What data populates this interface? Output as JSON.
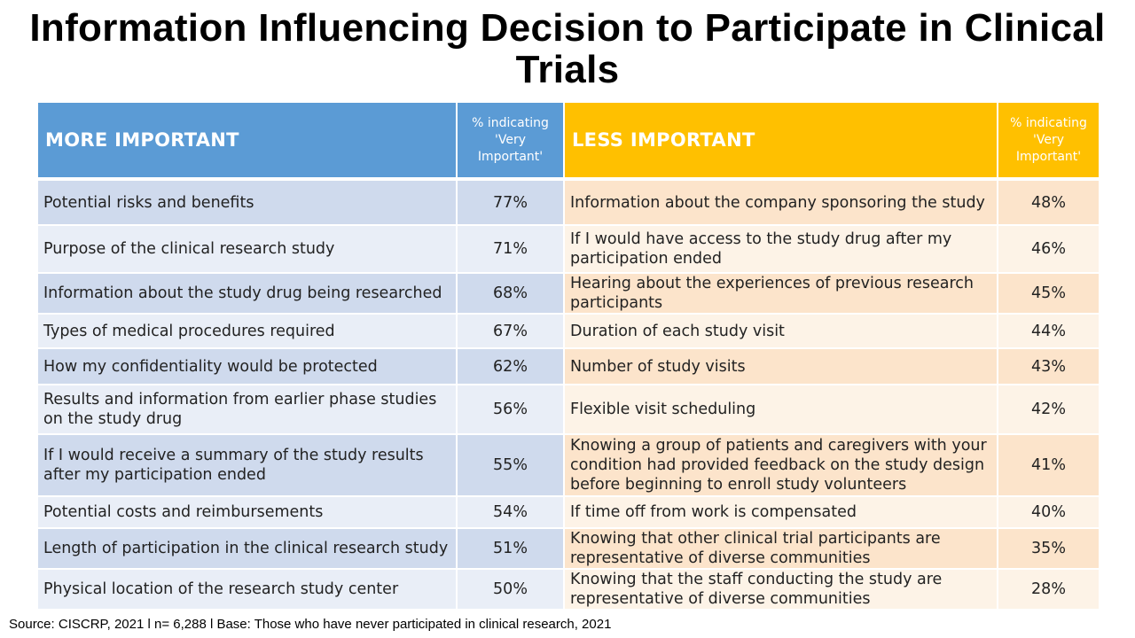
{
  "title": "Information Influencing Decision to Participate in Clinical Trials",
  "header": {
    "more_label": "MORE IMPORTANT",
    "more_pct_label": "% indicating 'Very Important'",
    "less_label": "LESS IMPORTANT",
    "less_pct_label": "% indicating 'Very Important'"
  },
  "colors": {
    "more_header": "#5b9bd5",
    "less_header": "#ffc000",
    "more_row_dark": "#cfdaed",
    "more_row_light": "#e9eef7",
    "less_row_dark": "#fce4cb",
    "less_row_light": "#fdf3e7"
  },
  "rows": [
    {
      "more": "Potential risks and benefits",
      "more_pct": "77%",
      "less": "Information about the company sponsoring the study",
      "less_pct": "48%"
    },
    {
      "more": "Purpose of the clinical research study",
      "more_pct": "71%",
      "less": "If I would have access to the study drug after my participation ended",
      "less_pct": "46%"
    },
    {
      "more": "Information about the study drug being researched",
      "more_pct": "68%",
      "less": "Hearing about the experiences of previous research participants",
      "less_pct": "45%"
    },
    {
      "more": "Types of medical procedures required",
      "more_pct": "67%",
      "less": "Duration of each study visit",
      "less_pct": "44%"
    },
    {
      "more": "How my confidentiality would be protected",
      "more_pct": "62%",
      "less": "Number of study visits",
      "less_pct": "43%"
    },
    {
      "more": "Results and information from earlier phase studies on the study drug",
      "more_pct": "56%",
      "less": "Flexible visit scheduling",
      "less_pct": "42%"
    },
    {
      "more": "If I would receive a summary of the study results after my participation ended",
      "more_pct": "55%",
      "less": "Knowing a group of patients and caregivers with your condition had provided feedback on the study design before beginning to enroll study volunteers",
      "less_pct": "41%"
    },
    {
      "more": "Potential costs and reimbursements",
      "more_pct": "54%",
      "less": "If time off from work is compensated",
      "less_pct": "40%"
    },
    {
      "more": "Length of participation in the clinical research study",
      "more_pct": "51%",
      "less": "Knowing that other clinical trial participants are representative of diverse communities",
      "less_pct": "35%"
    },
    {
      "more": "Physical location of the research study center",
      "more_pct": "50%",
      "less": "Knowing that the staff conducting the study are representative of diverse communities",
      "less_pct": "28%"
    }
  ],
  "source": "Source: CISCRP, 2021 l n= 6,288 l Base: Those who have never participated in clinical research, 2021"
}
